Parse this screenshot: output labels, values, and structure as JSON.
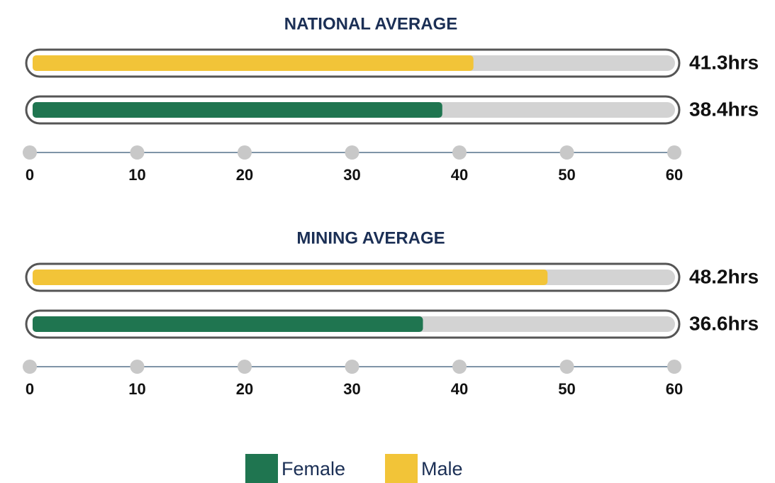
{
  "chart_data": [
    {
      "type": "bar",
      "orientation": "horizontal",
      "title": "NATIONAL AVERAGE",
      "values": [
        41.3,
        38.4
      ],
      "value_labels": [
        "41.3hrs",
        "38.4hrs"
      ],
      "xlim": [
        0,
        60
      ],
      "xticks": [
        0,
        10,
        20,
        30,
        40,
        50,
        60
      ]
    },
    {
      "type": "bar",
      "orientation": "horizontal",
      "title": "MINING AVERAGE",
      "values": [
        48.2,
        36.6
      ],
      "value_labels": [
        "48.2hrs",
        "36.6hrs"
      ],
      "xlim": [
        0,
        60
      ],
      "xticks": [
        0,
        10,
        20,
        30,
        40,
        50,
        60
      ]
    }
  ],
  "legend": [
    {
      "name": "Female",
      "color": "#1f7550"
    },
    {
      "name": "Male",
      "color": "#f2c438"
    }
  ]
}
